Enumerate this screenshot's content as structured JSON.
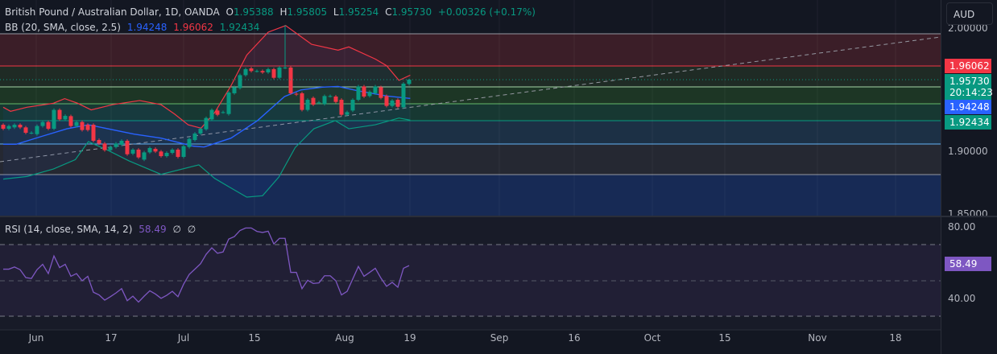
{
  "header": {
    "symbol": "British Pound / Australian Dollar, 1D, OANDA",
    "o_label": "O",
    "o": "1.95388",
    "h_label": "H",
    "h": "1.95805",
    "l_label": "L",
    "l": "1.95254",
    "c_label": "C",
    "c": "1.95730",
    "change": "+0.00326 (+0.17%)"
  },
  "bb": {
    "label": "BB (20, SMA, close, 2.5)",
    "basis": "1.94248",
    "upper": "1.96062",
    "lower": "1.92434"
  },
  "rsi": {
    "label": "RSI (14, close, SMA, 14, 2)",
    "value": "58.49",
    "extra1": "∅",
    "extra2": "∅"
  },
  "price_axis": {
    "currency": "AUD",
    "top": "2.00000",
    "upper_badge": "1.96062",
    "last_badge": "1.95730",
    "countdown": "20:14:23",
    "basis_badge": "1.94248",
    "lower_badge": "1.92434",
    "l1": "1.90000",
    "l2": "1.85000",
    "rsi_80": "80.00",
    "rsi_badge": "58.49",
    "rsi_40": "40.00"
  },
  "time_axis": [
    "Jun",
    "17",
    "Jul",
    "15",
    "Aug",
    "19",
    "Sep",
    "16",
    "Oct",
    "15",
    "Nov",
    "18"
  ],
  "colors": {
    "up": "#089981",
    "down": "#f23645",
    "basis": "#2962ff",
    "upper": "#f23645",
    "lower": "#089981",
    "rsi": "#7e57c2"
  },
  "chart_data": {
    "type": "candlestick",
    "title": "British Pound / Australian Dollar, 1D, OANDA",
    "ylim": [
      1.85,
      2.0
    ],
    "candles_oc": [
      [
        1.9212,
        1.918
      ],
      [
        1.918,
        1.9202
      ],
      [
        1.9191,
        1.9212
      ],
      [
        1.9212,
        1.9191
      ],
      [
        1.9191,
        1.9148
      ],
      [
        1.9148,
        1.9148
      ],
      [
        1.9137,
        1.9202
      ],
      [
        1.9202,
        1.9234
      ],
      [
        1.9234,
        1.918
      ],
      [
        1.918,
        1.9331
      ],
      [
        1.9331,
        1.9255
      ],
      [
        1.9255,
        1.9283
      ],
      [
        1.9281,
        1.9202
      ],
      [
        1.9202,
        1.9234
      ],
      [
        1.9234,
        1.917
      ],
      [
        1.9212,
        1.917
      ],
      [
        1.9212,
        1.9084
      ],
      [
        1.909,
        1.9062
      ],
      [
        1.9062,
        1.9009
      ],
      [
        1.9009,
        1.9034
      ],
      [
        1.9034,
        1.9062
      ],
      [
        1.9052,
        1.9084
      ],
      [
        1.9084,
        1.8976
      ],
      [
        1.8981,
        1.9013
      ],
      [
        1.9013,
        1.8951
      ],
      [
        1.8933,
        1.8991
      ],
      [
        1.8991,
        1.9026
      ],
      [
        1.9019,
        1.8998
      ],
      [
        1.8998,
        1.8961
      ],
      [
        1.8961,
        1.8987
      ],
      [
        1.8987,
        1.9013
      ],
      [
        1.9013,
        1.8955
      ],
      [
        1.8955,
        1.9041
      ],
      [
        1.9034,
        1.9099
      ],
      [
        1.909,
        1.9142
      ],
      [
        1.9142,
        1.918
      ],
      [
        1.9176,
        1.9266
      ],
      [
        1.9255,
        1.9331
      ],
      [
        1.9326,
        1.9292
      ],
      [
        1.9313,
        1.9313
      ],
      [
        1.9298,
        1.947
      ],
      [
        1.9464,
        1.9513
      ],
      [
        1.9506,
        1.9609
      ],
      [
        1.9609,
        1.9657
      ],
      [
        1.9663,
        1.9642
      ],
      [
        1.9642,
        1.9642
      ],
      [
        1.9642,
        1.9631
      ],
      [
        1.9631,
        1.9657
      ],
      [
        1.9657,
        1.9588
      ],
      [
        1.9588,
        1.967
      ],
      [
        1.967,
        1.967
      ],
      [
        1.967,
        1.9464
      ],
      [
        1.946,
        1.9455
      ],
      [
        1.9464,
        1.9331
      ],
      [
        1.9331,
        1.9412
      ],
      [
        1.9427,
        1.9373
      ],
      [
        1.9391,
        1.9391
      ],
      [
        1.9378,
        1.9442
      ],
      [
        1.9442,
        1.9442
      ],
      [
        1.9438,
        1.9395
      ],
      [
        1.9412,
        1.9292
      ],
      [
        1.9292,
        1.9313
      ],
      [
        1.9326,
        1.9412
      ],
      [
        1.9412,
        1.9519
      ],
      [
        1.9519,
        1.9438
      ],
      [
        1.9442,
        1.9476
      ],
      [
        1.9464,
        1.9519
      ],
      [
        1.9513,
        1.9427
      ],
      [
        1.9442,
        1.9363
      ],
      [
        1.9363,
        1.9406
      ],
      [
        1.9412,
        1.9356
      ],
      [
        1.9352,
        1.9541
      ],
      [
        1.95388,
        1.9573
      ]
    ],
    "wick_highs": {
      "50": 2.001,
      "72": 1.95805
    },
    "wick_lows": {
      "72": 1.95254
    },
    "bb_upper": [
      [
        0,
        1.9352
      ],
      [
        1.3,
        1.932
      ],
      [
        4.2,
        1.9352
      ],
      [
        8.9,
        1.9384
      ],
      [
        10.9,
        1.9421
      ],
      [
        13.2,
        1.9384
      ],
      [
        15.6,
        1.9331
      ],
      [
        19.4,
        1.9373
      ],
      [
        24.2,
        1.9406
      ],
      [
        28,
        1.9373
      ],
      [
        30.4,
        1.9298
      ],
      [
        32.8,
        1.9212
      ],
      [
        35.1,
        1.9185
      ],
      [
        37.5,
        1.9309
      ],
      [
        40.4,
        1.9524
      ],
      [
        43.2,
        1.977
      ],
      [
        47,
        1.9953
      ],
      [
        50.1,
        2.0006
      ],
      [
        54.7,
        1.9856
      ],
      [
        59.4,
        1.9809
      ],
      [
        61.3,
        1.9835
      ],
      [
        66,
        1.9738
      ],
      [
        68,
        1.9685
      ],
      [
        70.2,
        1.9567
      ],
      [
        72.2,
        1.9609
      ]
    ],
    "bb_basis": [
      [
        0,
        1.9056
      ],
      [
        2.3,
        1.9056
      ],
      [
        6.6,
        1.9116
      ],
      [
        11.3,
        1.918
      ],
      [
        15.1,
        1.9212
      ],
      [
        23.2,
        1.9137
      ],
      [
        28,
        1.9105
      ],
      [
        33.7,
        1.9041
      ],
      [
        35.6,
        1.9034
      ],
      [
        40.4,
        1.9105
      ],
      [
        45.1,
        1.9245
      ],
      [
        49.9,
        1.9438
      ],
      [
        52.8,
        1.9491
      ],
      [
        56.6,
        1.9513
      ],
      [
        59.4,
        1.9519
      ],
      [
        62.8,
        1.9485
      ],
      [
        68,
        1.9442
      ],
      [
        72.2,
        1.9423
      ]
    ],
    "bb_lower": [
      [
        0,
        1.8777
      ],
      [
        4.2,
        1.8798
      ],
      [
        8.9,
        1.8858
      ],
      [
        12.8,
        1.8933
      ],
      [
        15.1,
        1.9077
      ],
      [
        18.5,
        1.9009
      ],
      [
        22.3,
        1.8923
      ],
      [
        28,
        1.8815
      ],
      [
        34.7,
        1.8891
      ],
      [
        37.5,
        1.8783
      ],
      [
        39.9,
        1.8719
      ],
      [
        43.2,
        1.8633
      ],
      [
        46,
        1.8644
      ],
      [
        48.9,
        1.8794
      ],
      [
        51.8,
        1.903
      ],
      [
        55.1,
        1.918
      ],
      [
        58.9,
        1.9245
      ],
      [
        61.3,
        1.918
      ],
      [
        66,
        1.9212
      ],
      [
        70.2,
        1.9266
      ],
      [
        72.2,
        1.9249
      ]
    ],
    "rsi": [
      56.5,
      56.5,
      57.7,
      56.2,
      51.8,
      51.3,
      56.2,
      59.2,
      54,
      63.9,
      57.4,
      59.2,
      52.5,
      54,
      50,
      52.5,
      43.6,
      42.1,
      39.2,
      41.1,
      43.2,
      45.6,
      38.9,
      41.4,
      38.1,
      41.4,
      44.4,
      42.6,
      40.2,
      41.9,
      44.1,
      41.1,
      48.1,
      53.6,
      56.5,
      59.5,
      64.8,
      68.4,
      65.4,
      66.1,
      73.3,
      74.7,
      78.1,
      79.5,
      79.5,
      77.6,
      77,
      77.7,
      70.6,
      73.7,
      73.7,
      54.7,
      54.7,
      45.6,
      50.3,
      48.5,
      48.8,
      52.8,
      52.8,
      50,
      42.1,
      44.1,
      51,
      58,
      52.5,
      54.7,
      57,
      51.5,
      46.9,
      49.1,
      46.4,
      57,
      58.49
    ],
    "rsi_levels": [
      70,
      50,
      30
    ],
    "last_price": 1.9573
  }
}
